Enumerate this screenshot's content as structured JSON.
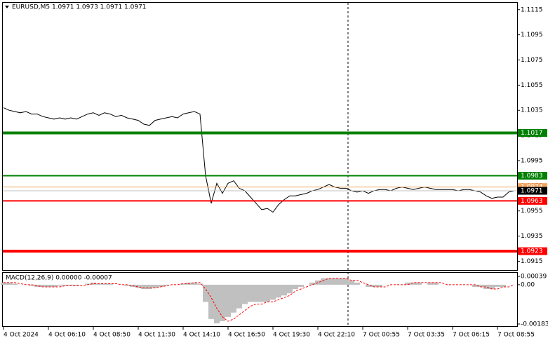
{
  "chart_data": [
    {
      "type": "line",
      "title": "EURUSD,M5  1.0971 1.0973 1.0971 1.0971",
      "x": [
        0,
        4,
        8,
        12,
        16,
        20,
        24,
        28,
        32,
        36,
        40,
        44,
        48,
        52,
        56,
        60,
        64,
        68,
        72,
        76,
        80,
        84,
        88,
        92,
        96,
        100,
        104,
        108,
        112,
        116,
        120,
        124,
        128,
        132,
        136,
        140,
        144,
        148,
        152,
        156,
        160,
        164,
        168,
        172,
        176,
        180,
        184,
        188,
        192,
        196,
        200,
        204,
        208,
        212,
        216,
        220,
        224,
        228,
        232,
        236,
        240,
        244,
        248,
        252,
        256,
        260,
        264,
        268,
        272,
        276,
        280,
        284,
        288,
        292,
        296,
        300,
        304,
        308,
        312,
        316,
        320,
        324,
        328,
        332,
        336,
        340,
        344,
        348,
        352,
        356,
        360,
        364
      ],
      "xlim": [
        -1,
        366
      ],
      "xticks": [
        {
          "value": 0,
          "label": "4 Oct 2024"
        },
        {
          "value": 32,
          "label": "4 Oct 06:10"
        },
        {
          "value": 64,
          "label": "4 Oct 08:50"
        },
        {
          "value": 96,
          "label": "4 Oct 11:30"
        },
        {
          "value": 128,
          "label": "4 Oct 14:10"
        },
        {
          "value": 160,
          "label": "4 Oct 16:50"
        },
        {
          "value": 192,
          "label": "4 Oct 19:30"
        },
        {
          "value": 224,
          "label": "4 Oct 22:10"
        },
        {
          "value": 256,
          "label": "7 Oct 00:55"
        },
        {
          "value": 288,
          "label": "7 Oct 03:35"
        },
        {
          "value": 320,
          "label": "7 Oct 06:15"
        },
        {
          "value": 352,
          "label": "7 Oct 08:55"
        }
      ],
      "ylim": [
        1.0908,
        1.1121
      ],
      "yticks": [
        1.1115,
        1.1095,
        1.1075,
        1.1055,
        1.1035,
        1.1015,
        1.0995,
        1.0975,
        1.0955,
        1.0935,
        1.0915
      ],
      "series": [
        {
          "color": "#000000",
          "values": [
            1.1037,
            1.1035,
            1.1034,
            1.1033,
            1.1034,
            1.1032,
            1.1032,
            1.103,
            1.1029,
            1.1028,
            1.1029,
            1.1028,
            1.1029,
            1.1028,
            1.103,
            1.1032,
            1.1033,
            1.1031,
            1.1033,
            1.1032,
            1.103,
            1.1031,
            1.1029,
            1.1028,
            1.1027,
            1.1024,
            1.1023,
            1.1027,
            1.1028,
            1.1029,
            1.103,
            1.1029,
            1.1032,
            1.1033,
            1.1034,
            1.1032,
            1.0983,
            1.0961,
            1.0977,
            1.0969,
            1.0977,
            1.0979,
            1.0973,
            1.0971,
            1.0966,
            1.0961,
            1.0956,
            1.0957,
            1.0954,
            1.096,
            1.0964,
            1.0967,
            1.0967,
            1.0968,
            1.0969,
            1.0971,
            1.0972,
            1.0974,
            1.0976,
            1.0974,
            1.0973,
            1.0973,
            1.0971,
            1.097,
            1.0971,
            1.0969,
            1.0971,
            1.0972,
            1.0972,
            1.0971,
            1.0973,
            1.0974,
            1.0973,
            1.0972,
            1.0973,
            1.0974,
            1.0973,
            1.0972,
            1.0972,
            1.0972,
            1.0972,
            1.0971,
            1.0972,
            1.0972,
            1.0971,
            1.097,
            1.0967,
            1.0965,
            1.0966,
            1.0966,
            1.097,
            1.0971
          ]
        }
      ],
      "levels": [
        {
          "value": 1.1017,
          "color": "#008000",
          "width": 4
        },
        {
          "value": 1.0983,
          "color": "#008000",
          "width": 2
        },
        {
          "value": 1.0974,
          "color": "#f4a460",
          "width": 1
        },
        {
          "value": 1.0971,
          "color": "#000000",
          "width": 0
        },
        {
          "value": 1.0963,
          "color": "#ff0000",
          "width": 2
        },
        {
          "value": 1.0923,
          "color": "#ff0000",
          "width": 4
        }
      ]
    },
    {
      "type": "macd",
      "title": "MACD(12,26,9) 0.00000 -0.00007",
      "x": [
        0,
        4,
        8,
        12,
        16,
        20,
        24,
        28,
        32,
        36,
        40,
        44,
        48,
        52,
        56,
        60,
        64,
        68,
        72,
        76,
        80,
        84,
        88,
        92,
        96,
        100,
        104,
        108,
        112,
        116,
        120,
        124,
        128,
        132,
        136,
        140,
        144,
        148,
        152,
        156,
        160,
        164,
        168,
        172,
        176,
        180,
        184,
        188,
        192,
        196,
        200,
        204,
        208,
        212,
        216,
        220,
        224,
        228,
        232,
        236,
        240,
        244,
        248,
        252,
        256,
        260,
        264,
        268,
        272,
        276,
        280,
        284,
        288,
        292,
        296,
        300,
        304,
        308,
        312,
        316,
        320,
        324,
        328,
        332,
        336,
        340,
        344,
        348,
        352,
        356,
        360,
        364
      ],
      "xlim": [
        -1,
        366
      ],
      "ylim": [
        -0.00193,
        0.00052
      ],
      "yticks": [
        0.00039,
        {
          "value": 0,
          "label": "0.00"
        },
        -0.00183
      ],
      "series": [
        {
          "type": "bar",
          "color": "#c0c0c0",
          "values": [
            0.0001,
            0.0001,
            5e-05,
            0,
            0,
            -5e-05,
            -0.0001,
            -0.0001,
            -0.0001,
            -0.0001,
            -5e-05,
            -5e-05,
            -5e-05,
            -5e-05,
            0,
            5e-05,
            0.0001,
            5e-05,
            5e-05,
            5e-05,
            0,
            0,
            -5e-05,
            -0.0001,
            -0.00015,
            -0.0002,
            -0.0002,
            -0.00015,
            -0.0001,
            -5e-05,
            0,
            0,
            5e-05,
            0.0001,
            0.0001,
            5e-05,
            -0.0008,
            -0.0016,
            -0.0018,
            -0.0017,
            -0.0015,
            -0.0013,
            -0.0011,
            -0.0009,
            -0.0008,
            -0.0008,
            -0.0008,
            -0.0008,
            -0.0007,
            -0.0006,
            -0.0005,
            -0.0004,
            -0.0002,
            -0.0001,
            0,
            0.0001,
            0.0002,
            0.0003,
            0.0003,
            0.0003,
            0.0003,
            0.0003,
            0.0002,
            0.0001,
            0,
            -0.0001,
            -0.0001,
            -0.0001,
            0,
            0,
            0,
            0,
            0.0001,
            0.0001,
            0.0001,
            0,
            0.0001,
            0.0001,
            0,
            0,
            0,
            0,
            0,
            0,
            -0.0001,
            -0.0001,
            -0.0002,
            -0.0002,
            -0.0001,
            -0.0001,
            0,
            0
          ]
        },
        {
          "type": "line",
          "color": "#ff0000",
          "values": [
            0.0001,
            0.0001,
            0.0001,
            5e-05,
            0,
            0,
            -5e-05,
            -0.0001,
            -0.0001,
            -0.0001,
            -0.0001,
            -5e-05,
            -5e-05,
            -5e-05,
            -5e-05,
            0,
            5e-05,
            5e-05,
            5e-05,
            5e-05,
            5e-05,
            0,
            0,
            -5e-05,
            -0.0001,
            -0.00015,
            -0.00015,
            -0.00015,
            -0.0001,
            -5e-05,
            0,
            0,
            5e-05,
            5e-05,
            0.0001,
            0.0001,
            -0.0002,
            -0.0006,
            -0.0011,
            -0.0015,
            -0.0017,
            -0.0016,
            -0.0014,
            -0.0012,
            -0.001,
            -0.0009,
            -0.0009,
            -0.0008,
            -0.0008,
            -0.0007,
            -0.0006,
            -0.0005,
            -0.0003,
            -0.0002,
            -0.0001,
            0,
            0.0001,
            0.0002,
            0.0003,
            0.0003,
            0.0003,
            0.0003,
            0.0002,
            0.0002,
            0.0001,
            0,
            -0.0001,
            -0.0001,
            -0.0001,
            0,
            0,
            0,
            0,
            0.0001,
            0.0001,
            0.0001,
            0.0001,
            0.0001,
            0.0001,
            0,
            0,
            0,
            0,
            0,
            0,
            -0.0001,
            -0.0001,
            -0.0002,
            -0.0002,
            -0.0001,
            -0.0001,
            0
          ]
        }
      ]
    }
  ]
}
